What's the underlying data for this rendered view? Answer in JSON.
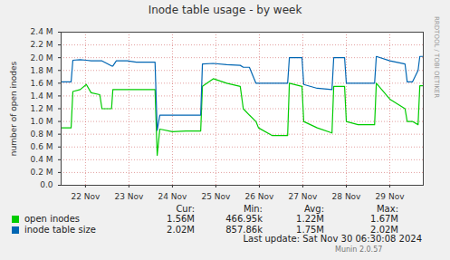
{
  "chart_data": {
    "type": "line",
    "title": "Inode table usage - by week",
    "ylabel": "number of open inodes",
    "x": [
      21.94,
      22.17,
      22.21,
      22.38,
      22.52,
      22.63,
      22.83,
      22.88,
      23.1,
      23.13,
      23.21,
      23.46,
      23.67,
      24.1,
      24.15,
      24.21,
      24.5,
      24.81,
      25.15,
      25.19,
      25.44,
      25.75,
      26.06,
      26.13,
      26.27,
      26.42,
      26.48,
      26.79,
      27.15,
      27.19,
      27.48,
      27.52,
      27.83,
      28.17,
      28.21,
      28.46,
      28.5,
      28.77,
      29.15,
      29.19,
      29.5,
      29.85,
      29.9,
      30.02,
      30.15,
      30.19,
      30.27
    ],
    "series": [
      {
        "name": "open inodes",
        "color": "#00cc00",
        "stats": [
          "1.56M",
          "466.95k",
          "1.22M",
          "1.67M"
        ],
        "values": [
          900000,
          900000,
          1470000,
          1500000,
          1580000,
          1450000,
          1420000,
          1200000,
          1200000,
          1500000,
          1500000,
          1500000,
          1500000,
          1500000,
          470000,
          880000,
          840000,
          850000,
          850000,
          1550000,
          1670000,
          1600000,
          1550000,
          1200000,
          1100000,
          1000000,
          900000,
          780000,
          780000,
          1600000,
          1550000,
          1000000,
          900000,
          820000,
          1550000,
          1550000,
          1000000,
          950000,
          950000,
          1600000,
          1350000,
          1200000,
          1000000,
          1000000,
          950000,
          1560000,
          1560000
        ]
      },
      {
        "name": "inode table size",
        "color": "#0066b3",
        "stats": [
          "2.02M",
          "857.86k",
          "1.75M",
          "2.02M"
        ],
        "values": [
          1620000,
          1620000,
          1960000,
          1970000,
          1960000,
          1950000,
          1950000,
          1950000,
          1870000,
          1870000,
          1950000,
          1950000,
          1930000,
          1930000,
          860000,
          1100000,
          1100000,
          1100000,
          1100000,
          1900000,
          1910000,
          1890000,
          1880000,
          1850000,
          1850000,
          1600000,
          1600000,
          1600000,
          1600000,
          2000000,
          2000000,
          1580000,
          1520000,
          1500000,
          2000000,
          2000000,
          1600000,
          1600000,
          1600000,
          2020000,
          1950000,
          1900000,
          1620000,
          1620000,
          1800000,
          2020000,
          2020000
        ]
      }
    ],
    "xlim": [
      21.94,
      30.27
    ],
    "xticks": [
      {
        "value": 22.5,
        "label": "22 Nov"
      },
      {
        "value": 23.5,
        "label": "23 Nov"
      },
      {
        "value": 24.5,
        "label": "24 Nov"
      },
      {
        "value": 25.5,
        "label": "25 Nov"
      },
      {
        "value": 26.5,
        "label": "26 Nov"
      },
      {
        "value": 27.5,
        "label": "27 Nov"
      },
      {
        "value": 28.5,
        "label": "28 Nov"
      },
      {
        "value": 29.5,
        "label": "29 Nov"
      }
    ],
    "ylim": [
      0,
      2400000
    ],
    "yticks": [
      {
        "value": 0,
        "label": "0.0"
      },
      {
        "value": 200000,
        "label": "0.2 M"
      },
      {
        "value": 400000,
        "label": "0.4 M"
      },
      {
        "value": 600000,
        "label": "0.6 M"
      },
      {
        "value": 800000,
        "label": "0.8 M"
      },
      {
        "value": 1000000,
        "label": "1.0 M"
      },
      {
        "value": 1200000,
        "label": "1.2 M"
      },
      {
        "value": 1400000,
        "label": "1.4 M"
      },
      {
        "value": 1600000,
        "label": "1.6 M"
      },
      {
        "value": 1800000,
        "label": "1.8 M"
      },
      {
        "value": 2000000,
        "label": "2.0 M"
      },
      {
        "value": 2200000,
        "label": "2.2 M"
      },
      {
        "value": 2400000,
        "label": "2.4 M"
      }
    ],
    "grid": true,
    "legend": "bottom",
    "stats_columns": [
      "Cur:",
      "Min:",
      "Avg:",
      "Max:"
    ],
    "annotations": {
      "last_update": "Last update: Sat Nov 30 06:30:08 2024",
      "version": "Munin 2.0.57",
      "watermark": "RRDTOOL / TOBI OETIKER"
    }
  }
}
